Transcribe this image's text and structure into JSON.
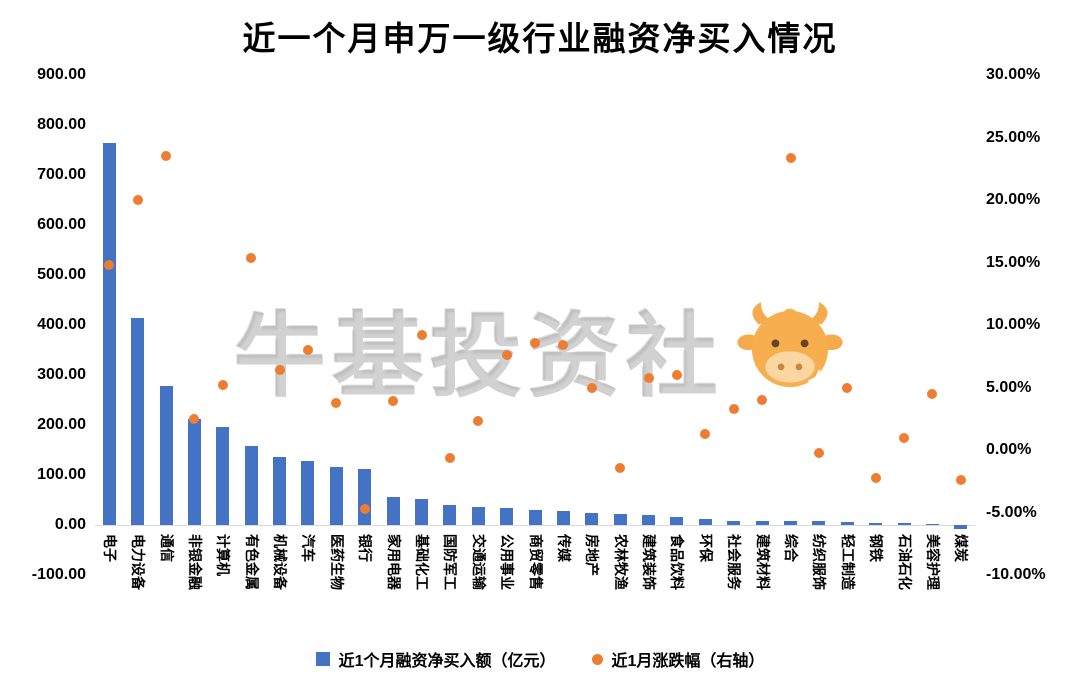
{
  "title": "近一个月申万一级行业融资净买入情况",
  "watermark": "牛基投资社",
  "legend": {
    "bars": "近1个月融资净买入额（亿元）",
    "dots": "近1月涨跌幅（右轴）"
  },
  "colors": {
    "bar": "#4472C4",
    "dot": "#ED7D31",
    "mascot": "#F7A83F"
  },
  "left_axis": {
    "min": -100,
    "max": 900,
    "ticks": [
      "900.00",
      "800.00",
      "700.00",
      "600.00",
      "500.00",
      "400.00",
      "300.00",
      "200.00",
      "100.00",
      "0.00",
      "-100.00"
    ]
  },
  "right_axis": {
    "min": -10,
    "max": 30,
    "ticks": [
      "30.00%",
      "25.00%",
      "20.00%",
      "15.00%",
      "10.00%",
      "5.00%",
      "0.00%",
      "-5.00%",
      "-10.00%"
    ]
  },
  "chart_data": {
    "type": "bar",
    "title": "近一个月申万一级行业融资净买入情况",
    "categories": [
      "电子",
      "电力设备",
      "通信",
      "非银金融",
      "计算机",
      "有色金属",
      "机械设备",
      "汽车",
      "医药生物",
      "银行",
      "家用电器",
      "基础化工",
      "国防军工",
      "交通运输",
      "公用事业",
      "商贸零售",
      "传媒",
      "房地产",
      "农林牧渔",
      "建筑装饰",
      "食品饮料",
      "环保",
      "社会服务",
      "建筑材料",
      "综合",
      "纺织服饰",
      "轻工制造",
      "钢铁",
      "石油石化",
      "美容护理",
      "煤炭"
    ],
    "series": [
      {
        "name": "近1个月融资净买入额（亿元）",
        "type": "bar",
        "axis": "left",
        "unit": "亿元",
        "values": [
          765,
          415,
          278,
          213,
          196,
          158,
          137,
          128,
          117,
          112,
          57,
          53,
          41,
          37,
          35,
          30,
          28,
          24,
          22,
          20,
          16,
          12,
          9,
          8,
          8,
          8,
          7,
          5,
          4,
          2,
          -8
        ]
      },
      {
        "name": "近1月涨跌幅（右轴）",
        "type": "scatter",
        "axis": "right",
        "unit": "%",
        "values": [
          14.8,
          20.0,
          23.5,
          2.5,
          5.2,
          15.4,
          6.4,
          8.0,
          3.8,
          -4.7,
          3.9,
          9.2,
          -0.6,
          2.3,
          7.6,
          8.6,
          8.4,
          5.0,
          -1.4,
          5.8,
          6.0,
          1.3,
          3.3,
          4.0,
          23.4,
          -0.2,
          5.0,
          -2.2,
          1.0,
          4.5,
          -2.4
        ]
      }
    ],
    "left_ylim": [
      -100,
      900
    ],
    "right_ylim": [
      -10,
      30
    ],
    "grid": false,
    "legend_position": "bottom"
  }
}
